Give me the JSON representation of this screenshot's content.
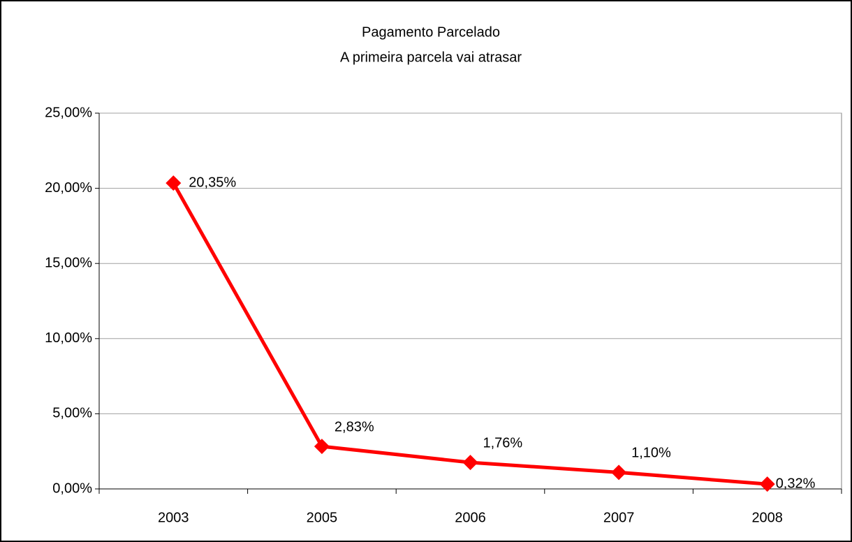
{
  "chart_data": {
    "type": "line",
    "title": "Pagamento Parcelado",
    "subtitle": "A primeira parcela vai atrasar",
    "categories": [
      "2003",
      "2005",
      "2006",
      "2007",
      "2008"
    ],
    "series": [
      {
        "name": "Pagamento Parcelado",
        "color": "#ff0000",
        "values": [
          20.35,
          2.83,
          1.76,
          1.1,
          0.32
        ],
        "value_labels": [
          "20,35%",
          "2,83%",
          "1,76%",
          "1,10%",
          "0,32%"
        ]
      }
    ],
    "ylim": [
      0,
      25
    ],
    "yticks": [
      {
        "value": 0,
        "label": "0,00%"
      },
      {
        "value": 5,
        "label": "5,00%"
      },
      {
        "value": 10,
        "label": "10,00%"
      },
      {
        "value": 15,
        "label": "15,00%"
      },
      {
        "value": 20,
        "label": "20,00%"
      },
      {
        "value": 25,
        "label": "25,00%"
      }
    ],
    "grid": true
  }
}
